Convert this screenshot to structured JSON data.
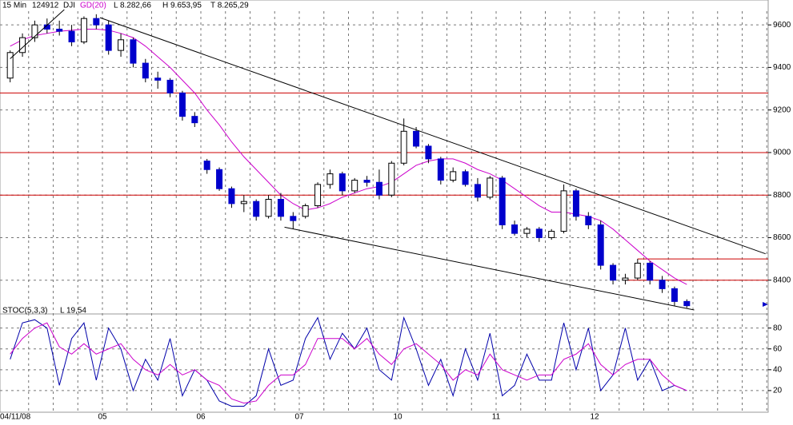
{
  "chart_data": [
    {
      "type": "candlestick",
      "header": [
        "15 Min",
        "124912",
        "DJI"
      ],
      "stats": [
        "L 8.282,66",
        "H 9.653,95",
        "T 8.265,29"
      ],
      "day_labels": [
        "04/11/08",
        "05",
        "06",
        "07",
        "10",
        "11",
        "12"
      ],
      "open": [
        9350,
        9470,
        9540,
        9600,
        9580,
        9570,
        9520,
        9630,
        9600,
        9480,
        9530,
        9420,
        9350,
        9340,
        9280,
        9170,
        8960,
        8920,
        8830,
        8760,
        8770,
        8700,
        8780,
        8700,
        8700,
        8750,
        8850,
        8900,
        8820,
        8870,
        8860,
        8800,
        8950,
        9100,
        9030,
        8970,
        8870,
        8910,
        8850,
        8790,
        8880,
        8660,
        8620,
        8640,
        8600,
        8630,
        8820,
        8700,
        8660,
        8470,
        8400,
        8410,
        8480,
        8400,
        8360,
        8300
      ],
      "high": [
        9480,
        9560,
        9620,
        9630,
        9620,
        9600,
        9640,
        9650,
        9620,
        9560,
        9540,
        9440,
        9380,
        9350,
        9290,
        9190,
        8970,
        8930,
        8840,
        8800,
        8780,
        8800,
        8810,
        8720,
        8760,
        8860,
        8920,
        8910,
        8880,
        8890,
        8920,
        8960,
        9160,
        9120,
        9040,
        8980,
        8930,
        8920,
        8880,
        8890,
        8890,
        8680,
        8650,
        8650,
        8640,
        8850,
        8830,
        8720,
        8680,
        8480,
        8430,
        8500,
        8490,
        8420,
        8370,
        8310
      ],
      "low": [
        9330,
        9450,
        9520,
        9560,
        9550,
        9500,
        9510,
        9580,
        9460,
        9450,
        9400,
        9330,
        9300,
        9260,
        9150,
        9120,
        8900,
        8820,
        8740,
        8720,
        8680,
        8690,
        8680,
        8640,
        8690,
        8740,
        8830,
        8800,
        8810,
        8840,
        8780,
        8790,
        8940,
        9020,
        8950,
        8850,
        8860,
        8840,
        8770,
        8780,
        8640,
        8610,
        8600,
        8580,
        8590,
        8620,
        8680,
        8640,
        8450,
        8380,
        8380,
        8400,
        8380,
        8340,
        8280,
        8270
      ],
      "close": [
        9470,
        9540,
        9600,
        9580,
        9570,
        9520,
        9630,
        9600,
        9480,
        9530,
        9420,
        9350,
        9340,
        9280,
        9170,
        9140,
        8920,
        8830,
        8760,
        8770,
        8700,
        8780,
        8700,
        8680,
        8750,
        8850,
        8900,
        8820,
        8870,
        8860,
        8800,
        8950,
        9100,
        9030,
        8970,
        8870,
        8910,
        8850,
        8790,
        8880,
        8660,
        8620,
        8640,
        8600,
        8630,
        8820,
        8700,
        8660,
        8470,
        8400,
        8410,
        8480,
        8400,
        8360,
        8300,
        8280
      ],
      "ma": {
        "name": "GD(20)",
        "color": "#cc00cc",
        "values": [
          9500,
          9530,
          9550,
          9560,
          9570,
          9575,
          9580,
          9580,
          9575,
          9560,
          9540,
          9500,
          9450,
          9400,
          9340,
          9280,
          9200,
          9130,
          9050,
          8980,
          8920,
          8860,
          8800,
          8760,
          8730,
          8740,
          8760,
          8790,
          8810,
          8830,
          8840,
          8860,
          8900,
          8940,
          8960,
          8970,
          8970,
          8950,
          8920,
          8900,
          8870,
          8830,
          8790,
          8750,
          8720,
          8720,
          8710,
          8700,
          8680,
          8640,
          8590,
          8540,
          8490,
          8450,
          8410,
          8380
        ]
      },
      "up_color": "#ffffff",
      "down_color": "#0000cc",
      "ylim": [
        8245,
        9717
      ],
      "yticks": [
        8400,
        8600,
        8800,
        9000,
        9200,
        9400,
        9600
      ],
      "hlines": [
        {
          "value": 9280,
          "from": 0
        },
        {
          "value": 9000,
          "from": 0
        },
        {
          "value": 8800,
          "from": 0
        },
        {
          "value": 8500,
          "from": 51
        },
        {
          "value": 8400,
          "from": 50
        }
      ],
      "hline_color": "#cc0000",
      "trendlines": [
        {
          "x": [
            7.3,
            61.4
          ],
          "y": [
            9634,
            8524
          ]
        },
        {
          "x": [
            22.3,
            55.6
          ],
          "y": [
            8649,
            8260
          ]
        },
        {
          "x": [
            0,
            4.4
          ],
          "y": [
            9441,
            9672
          ]
        }
      ],
      "grid": true
    },
    {
      "type": "line",
      "title": "STOC(5,3,3)",
      "stat": "L 19,54",
      "series": [
        {
          "color": "#0000aa",
          "values": [
            50,
            85,
            88,
            80,
            25,
            70,
            85,
            30,
            80,
            60,
            20,
            50,
            30,
            70,
            15,
            40,
            30,
            10,
            5,
            5,
            15,
            60,
            25,
            30,
            70,
            90,
            50,
            75,
            60,
            80,
            40,
            30,
            90,
            60,
            25,
            50,
            15,
            60,
            30,
            75,
            15,
            25,
            55,
            30,
            30,
            85,
            40,
            80,
            20,
            35,
            80,
            30,
            50,
            20,
            25,
            20
          ]
        },
        {
          "color": "#cc00cc",
          "values": [
            55,
            70,
            80,
            85,
            62,
            55,
            65,
            55,
            60,
            65,
            50,
            40,
            35,
            45,
            35,
            40,
            30,
            25,
            12,
            8,
            10,
            25,
            35,
            35,
            45,
            70,
            70,
            70,
            60,
            70,
            55,
            45,
            60,
            65,
            55,
            45,
            30,
            40,
            35,
            55,
            40,
            35,
            30,
            35,
            35,
            50,
            55,
            65,
            45,
            35,
            45,
            50,
            50,
            35,
            25,
            20
          ]
        }
      ],
      "ylim": [
        0,
        92
      ],
      "yticks": [
        20,
        40,
        60,
        80
      ],
      "grid": true
    }
  ]
}
